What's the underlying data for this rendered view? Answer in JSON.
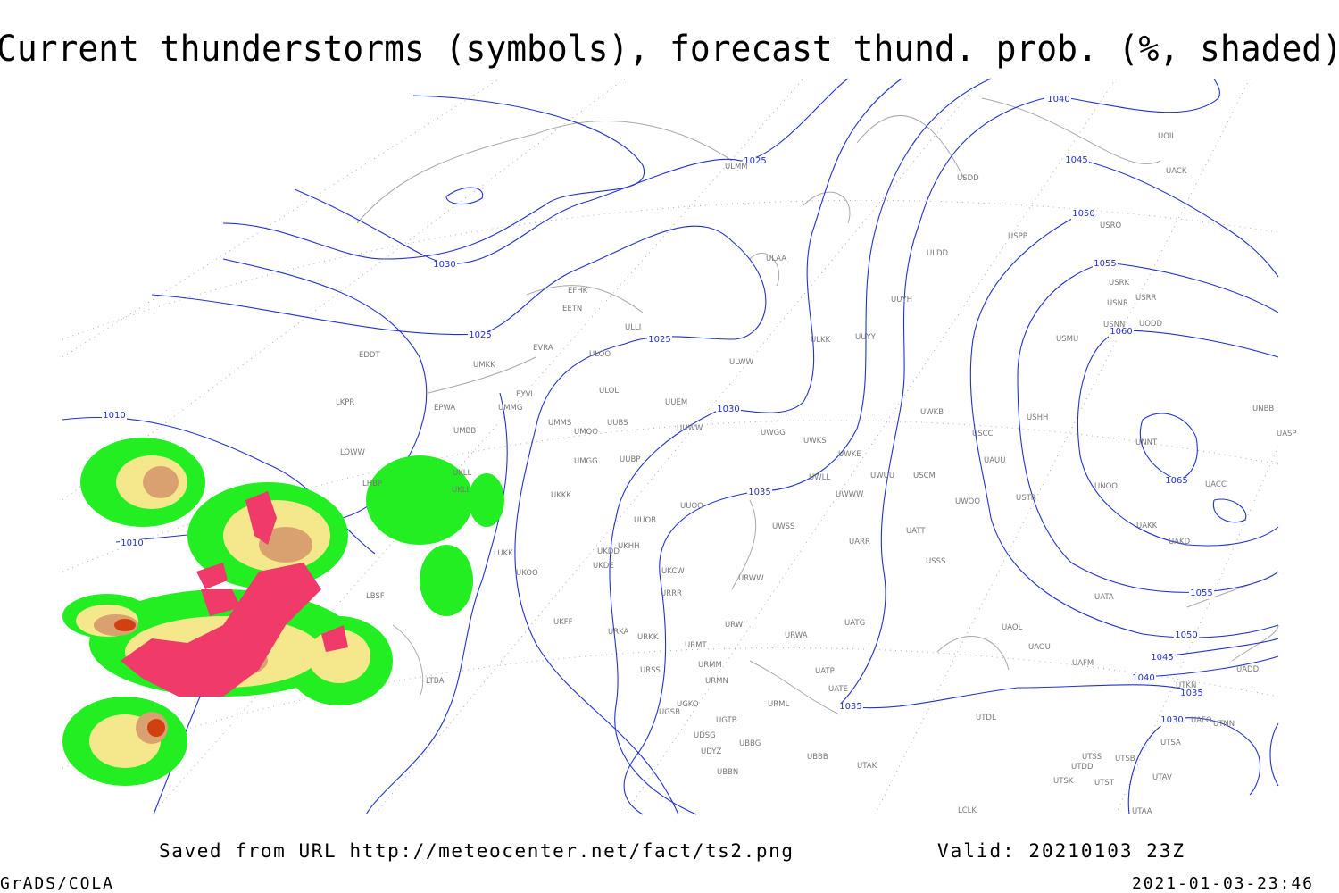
{
  "header": {
    "title": "Current thunderstorms (symbols), forecast thund. prob. (%, shaded)"
  },
  "map": {
    "isobar_labels": [
      1010,
      1010,
      1030,
      1025,
      1025,
      1025,
      1030,
      1035,
      1040,
      1045,
      1050,
      1055,
      1060,
      1065,
      1055,
      1050,
      1045,
      1040,
      1035,
      1030,
      1035
    ],
    "stations": [
      "EDDT",
      "LKPR",
      "LOWW",
      "LHBP",
      "LBSF",
      "LTBA",
      "EPWA",
      "UMBB",
      "UKLL",
      "UKLI",
      "LUKK",
      "UKOO",
      "EFHK",
      "EETN",
      "EVRA",
      "ULLI",
      "ULOL",
      "EYVI",
      "UMMS",
      "UMKK",
      "UMMG",
      "UMOO",
      "ULOO",
      "UUBS",
      "UUEM",
      "UUWW",
      "UMGG",
      "UUBP",
      "UKKK",
      "UUOO",
      "UUOB",
      "UKHH",
      "UKDD",
      "UKDE",
      "UKCW",
      "URRR",
      "UKFF",
      "URKA",
      "URKK",
      "URMT",
      "URMM",
      "URSS",
      "URMN",
      "UGKO",
      "UGSB",
      "UGTB",
      "UDSG",
      "UBBG",
      "UDYZ",
      "UBBN",
      "URWI",
      "URWA",
      "UATG",
      "UATP",
      "UATE",
      "URML",
      "UBBB",
      "UTAK",
      "URWW",
      "UWSS",
      "UARR",
      "UWWW",
      "UWLL",
      "UWKE",
      "UWKS",
      "UWGG",
      "ULWW",
      "ULKK",
      "UUYY",
      "UUYH",
      "ULAA",
      "ULMM",
      "ULDD",
      "USDD",
      "USPP",
      "UWKB",
      "UWUU",
      "USCM",
      "UWOO",
      "UATT",
      "USSS",
      "USCC",
      "UAUU",
      "USTR",
      "USHH",
      "USMU",
      "USRO",
      "USRK",
      "USNR",
      "USRR",
      "USNN",
      "UODD",
      "UOII",
      "UACK",
      "UNOO",
      "UNNT",
      "UNBB",
      "UASP",
      "UACC",
      "UAKK",
      "UAKD",
      "UATA",
      "UAOL",
      "UAOU",
      "UAFM",
      "UADD",
      "UTKN",
      "UAFO",
      "UTNN",
      "UTDL",
      "UTSA",
      "UTSS",
      "UTSB",
      "UTDD",
      "UTAV",
      "UTSK",
      "UTST",
      "UTAA",
      "LCLK"
    ]
  },
  "footer": {
    "source": "Saved from URL http://meteocenter.net/fact/ts2.png",
    "valid": "Valid: 20210103 23Z",
    "software": "GrADS/COLA",
    "timestamp": "2021-01-03-23:46"
  }
}
